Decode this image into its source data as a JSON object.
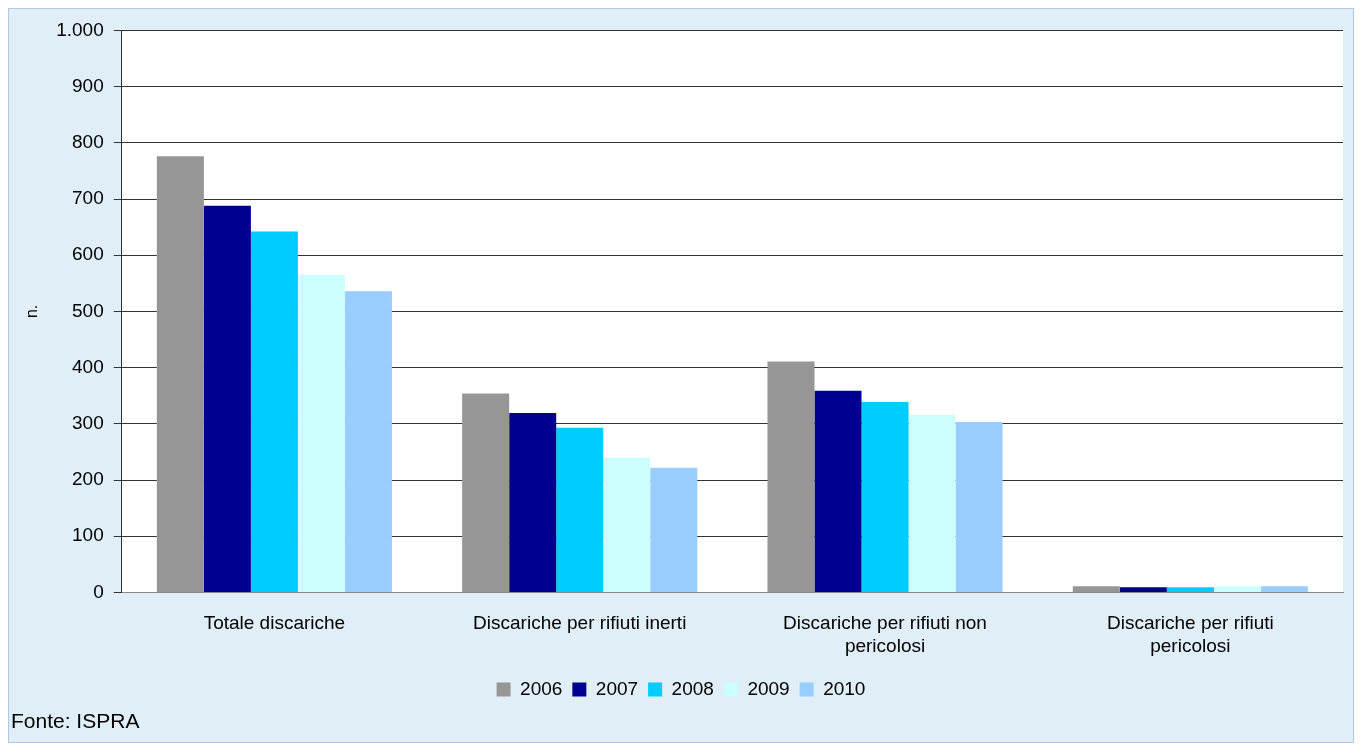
{
  "chart_data": {
    "type": "bar",
    "ylabel": "n.",
    "categories": [
      "Totale discariche",
      "Discariche per rifiuti inerti",
      "Discariche per rifiuti non pericolosi",
      "Discariche per rifiuti pericolosi"
    ],
    "series": [
      {
        "name": "2006",
        "color": "#969696",
        "values": [
          776,
          354,
          411,
          11
        ]
      },
      {
        "name": "2007",
        "color": "#000090",
        "values": [
          688,
          319,
          359,
          9
        ]
      },
      {
        "name": "2008",
        "color": "#00ccff",
        "values": [
          642,
          293,
          339,
          9
        ]
      },
      {
        "name": "2009",
        "color": "#ccffff",
        "values": [
          565,
          240,
          316,
          11
        ]
      },
      {
        "name": "2010",
        "color": "#99ccff",
        "values": [
          536,
          222,
          303,
          11
        ]
      }
    ],
    "ylim": [
      0,
      1000
    ],
    "yticks": [
      0,
      100,
      200,
      300,
      400,
      500,
      600,
      700,
      800,
      900,
      {
        "value": 1000,
        "label": "1.000"
      }
    ],
    "grid": "y",
    "legend": "bottom",
    "annotations": [
      "Fonte: ISPRA"
    ]
  }
}
